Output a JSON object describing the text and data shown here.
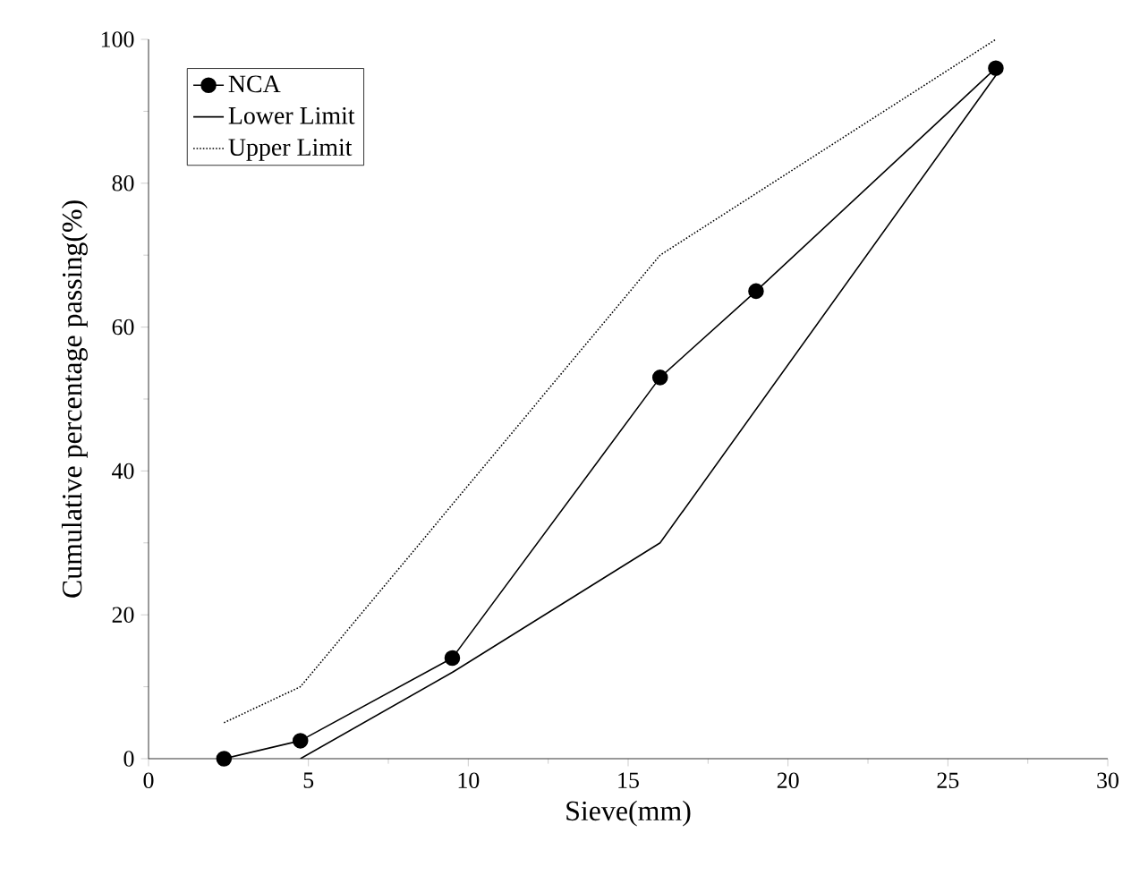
{
  "chart_data": {
    "type": "line",
    "xlabel": "Sieve(mm)",
    "ylabel": "Cumulative percentage passing(%)",
    "series": [
      {
        "name": "NCA",
        "color": "#000000",
        "marker": "circle",
        "line_style": "solid",
        "x": [
          2.36,
          4.75,
          9.5,
          16,
          19,
          26.5
        ],
        "values": [
          0,
          2.5,
          14,
          53,
          65,
          96
        ]
      },
      {
        "name": "Lower Limit",
        "color": "#000000",
        "marker": "none",
        "line_style": "solid",
        "x": [
          4.75,
          9.5,
          16,
          26.5
        ],
        "values": [
          0,
          12,
          30,
          95
        ]
      },
      {
        "name": "Upper Limit",
        "color": "#000000",
        "marker": "none",
        "line_style": "dotted",
        "x": [
          2.36,
          4.75,
          16,
          26.5
        ],
        "values": [
          5,
          10,
          70,
          100
        ]
      }
    ],
    "xlim": [
      0,
      30
    ],
    "ylim": [
      0,
      100
    ],
    "xticks": [
      0,
      5,
      10,
      15,
      20,
      25,
      30
    ],
    "yticks": [
      0,
      20,
      40,
      60,
      80,
      100
    ],
    "grid": false,
    "legend": "top left"
  }
}
